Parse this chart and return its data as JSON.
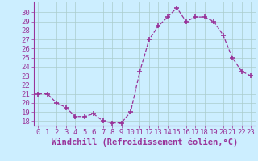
{
  "x": [
    0,
    1,
    2,
    3,
    4,
    5,
    6,
    7,
    8,
    9,
    10,
    11,
    12,
    13,
    14,
    15,
    16,
    17,
    18,
    19,
    20,
    21,
    22,
    23
  ],
  "y": [
    21,
    21,
    20,
    19.5,
    18.5,
    18.5,
    18.8,
    18,
    17.8,
    17.8,
    19,
    23.5,
    27,
    28.5,
    29.5,
    30.5,
    29,
    29.5,
    29.5,
    29,
    27.5,
    25,
    23.5,
    23
  ],
  "line_color": "#993399",
  "marker": "+",
  "marker_size": 4,
  "marker_lw": 1.2,
  "bg_color": "#cceeff",
  "grid_color": "#aacccc",
  "xlabel": "Windchill (Refroidissement éolien,°C)",
  "ylim": [
    17.5,
    31.2
  ],
  "xlim": [
    -0.5,
    23.5
  ],
  "yticks": [
    18,
    19,
    20,
    21,
    22,
    23,
    24,
    25,
    26,
    27,
    28,
    29,
    30
  ],
  "xticks": [
    0,
    1,
    2,
    3,
    4,
    5,
    6,
    7,
    8,
    9,
    10,
    11,
    12,
    13,
    14,
    15,
    16,
    17,
    18,
    19,
    20,
    21,
    22,
    23
  ],
  "tick_fontsize": 6.5,
  "xlabel_fontsize": 7.5
}
